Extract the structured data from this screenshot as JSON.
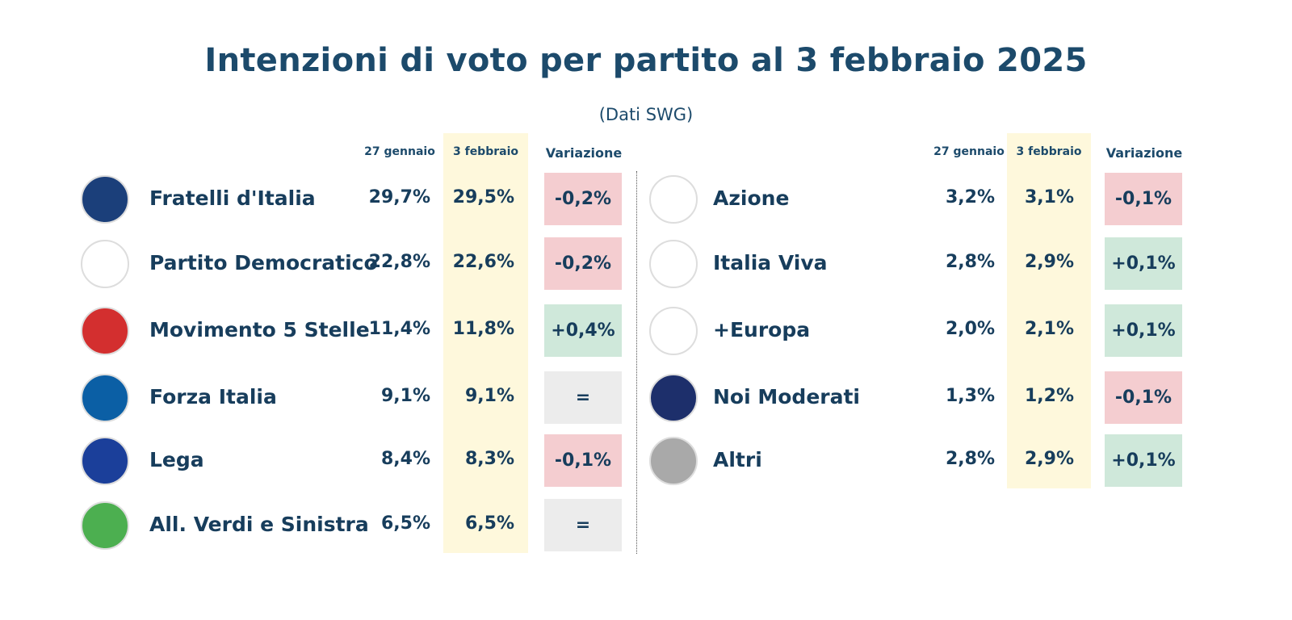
{
  "title": "Intenzioni di voto per partito al 3 febbraio 2025",
  "subtitle": "(Dati SWG)",
  "colors": {
    "decrease": "#f4cdd0",
    "increase": "#cfe8da",
    "unchanged": "#ececec",
    "highlight": "#fef8dc",
    "text": "#173d5c"
  },
  "chart_data": {
    "type": "table",
    "columns": [
      "27 gennaio",
      "3  febbraio",
      "Variazione"
    ],
    "columns_right": [
      "27 gennaio",
      "3 febbraio",
      "Variazione"
    ],
    "left": [
      {
        "party": "Fratelli d'Italia",
        "prev": "29,7%",
        "curr": "29,5%",
        "change": "-0,2%",
        "trend": "decrease",
        "logo": "FRATELLI d'ITALIA",
        "logo_color": "#1b3f7a"
      },
      {
        "party": "Partito Democratico",
        "prev": "22,8%",
        "curr": "22,6%",
        "change": "-0,2%",
        "trend": "decrease",
        "logo": "PD",
        "logo_color": "#ffffff"
      },
      {
        "party": "Movimento 5 Stelle",
        "prev": "11,4%",
        "curr": "11,8%",
        "change": "+0,4%",
        "trend": "increase",
        "logo": "MOVIMENTO 2050",
        "logo_color": "#ffffff"
      },
      {
        "party": "Forza Italia",
        "prev": "9,1%",
        "curr": "9,1%",
        "change": "=",
        "trend": "unchanged",
        "logo": "FORZA ITALIA BERLUSCONI",
        "logo_color": "#ffffff"
      },
      {
        "party": "Lega",
        "prev": "8,4%",
        "curr": "8,3%",
        "change": "-0,1%",
        "trend": "decrease",
        "logo": "LEGA SALVINI",
        "logo_color": "#ffffff"
      },
      {
        "party": "All. Verdi e Sinistra",
        "prev": "6,5%",
        "curr": "6,5%",
        "change": "=",
        "trend": "unchanged",
        "logo": "Alleanza Verdi Sinistra",
        "logo_color": "#ffffff"
      }
    ],
    "right": [
      {
        "party": "Azione",
        "prev": "3,2%",
        "curr": "3,1%",
        "change": "-0,1%",
        "trend": "decrease",
        "logo": "AZIONE CALENDA",
        "logo_color": "#1b3f7a"
      },
      {
        "party": "Italia Viva",
        "prev": "2,8%",
        "curr": "2,9%",
        "change": "+0,1%",
        "trend": "increase",
        "logo": "ITALIAVIVA",
        "logo_color": "#ffffff"
      },
      {
        "party": "+Europa",
        "prev": "2,0%",
        "curr": "2,1%",
        "change": "+0,1%",
        "trend": "increase",
        "logo": "+EUROPA",
        "logo_color": "#1b3f9a"
      },
      {
        "party": "Noi Moderati",
        "prev": "1,3%",
        "curr": "1,2%",
        "change": "-0,1%",
        "trend": "decrease",
        "logo": "NOI MODERATI",
        "logo_color": "#1d2f6b"
      },
      {
        "party": "Altri",
        "prev": "2,8%",
        "curr": "2,9%",
        "change": "+0,1%",
        "trend": "increase",
        "logo": "",
        "logo_color": "#a9a9a9"
      }
    ]
  }
}
